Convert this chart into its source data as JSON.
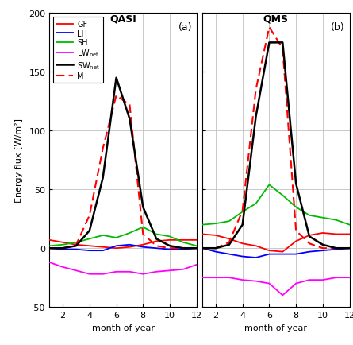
{
  "months": [
    1,
    2,
    3,
    4,
    5,
    6,
    7,
    8,
    9,
    10,
    11,
    12
  ],
  "QASI": {
    "GF": [
      7,
      5,
      3,
      2,
      1,
      0,
      1,
      3,
      6,
      7,
      7,
      7
    ],
    "LH": [
      0,
      -1,
      -1,
      -2,
      -2,
      2,
      3,
      1,
      0,
      -1,
      -1,
      0
    ],
    "SH": [
      2,
      3,
      5,
      8,
      11,
      9,
      13,
      18,
      12,
      10,
      5,
      2
    ],
    "LW_net": [
      -12,
      -16,
      -19,
      -22,
      -22,
      -20,
      -20,
      -22,
      -20,
      -19,
      -18,
      -14
    ],
    "SW_net": [
      0,
      0,
      2,
      15,
      60,
      145,
      110,
      35,
      8,
      2,
      0,
      0
    ],
    "M": [
      0,
      0,
      3,
      28,
      85,
      130,
      122,
      12,
      2,
      0,
      0,
      0
    ]
  },
  "QMS": {
    "GF": [
      12,
      11,
      8,
      4,
      2,
      -2,
      -3,
      6,
      11,
      13,
      12,
      12
    ],
    "LH": [
      0,
      -3,
      -5,
      -7,
      -8,
      -5,
      -5,
      -5,
      -3,
      -2,
      -1,
      0
    ],
    "SH": [
      20,
      21,
      23,
      31,
      38,
      54,
      45,
      35,
      28,
      26,
      24,
      20
    ],
    "LW_net": [
      -25,
      -25,
      -25,
      -27,
      -28,
      -30,
      -40,
      -30,
      -27,
      -27,
      -25,
      -25
    ],
    "SW_net": [
      0,
      0,
      3,
      20,
      112,
      175,
      175,
      55,
      10,
      3,
      0,
      0
    ],
    "M": [
      0,
      0,
      5,
      32,
      135,
      188,
      170,
      15,
      4,
      0,
      0,
      0
    ]
  },
  "ylim": [
    -50,
    200
  ],
  "yticks": [
    -50,
    0,
    50,
    100,
    150,
    200
  ],
  "xticks": [
    2,
    4,
    6,
    8,
    10,
    12
  ],
  "xlim": [
    1,
    12
  ],
  "ylabel": "Energy flux [W/m²]",
  "xlabel": "month of year",
  "title_a": "QASI",
  "title_b": "QMS",
  "label_a": "(a)",
  "label_b": "(b)",
  "colors": {
    "GF": "#ff0000",
    "LH": "#0000ff",
    "SH": "#00bb00",
    "LW_net": "#ff00ff",
    "SW_net": "#000000",
    "M": "#ff0000"
  },
  "grid_color": "#c0c0c0",
  "background_color": "#ffffff",
  "fig_background": "#ffffff"
}
